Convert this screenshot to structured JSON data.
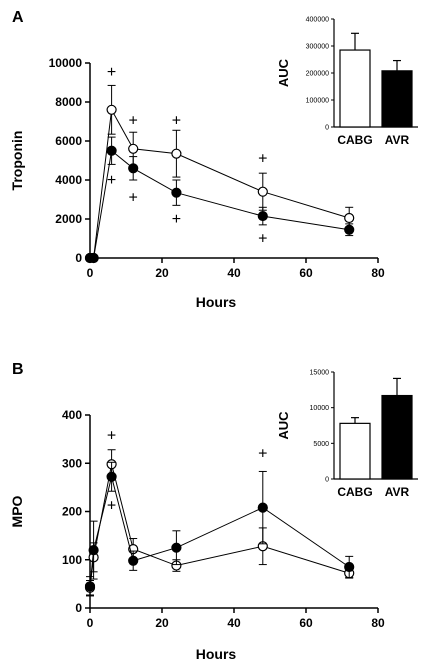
{
  "chart_data": [
    {
      "panel": "A",
      "type": "line",
      "xlabel": "Hours",
      "ylabel": "Troponin",
      "xlim": [
        0,
        80
      ],
      "ylim": [
        0,
        10000
      ],
      "xticks": [
        0,
        20,
        40,
        60,
        80
      ],
      "yticks": [
        0,
        2000,
        4000,
        6000,
        8000,
        10000
      ],
      "series": [
        {
          "marker": "open-circle",
          "x": [
            0,
            1,
            6,
            12,
            24,
            48,
            72
          ],
          "y": [
            0,
            0,
            7600,
            5600,
            5350,
            3400,
            2050
          ],
          "err": [
            0,
            0,
            1250,
            850,
            1200,
            950,
            550
          ]
        },
        {
          "marker": "filled-circle",
          "x": [
            0,
            1,
            6,
            12,
            24,
            48,
            72
          ],
          "y": [
            0,
            0,
            5500,
            4600,
            3350,
            2150,
            1450
          ],
          "err": [
            0,
            0,
            700,
            600,
            650,
            450,
            300
          ]
        }
      ],
      "significance_markers": [
        {
          "symbol": "+",
          "x": 6,
          "y": 9600
        },
        {
          "symbol": "+",
          "x": 6,
          "y": 4050
        },
        {
          "symbol": "+",
          "x": 12,
          "y": 7100
        },
        {
          "symbol": "+",
          "x": 12,
          "y": 3150
        },
        {
          "symbol": "+",
          "x": 24,
          "y": 7100
        },
        {
          "symbol": "+",
          "x": 24,
          "y": 2050
        },
        {
          "symbol": "+",
          "x": 48,
          "y": 5150
        },
        {
          "symbol": "+",
          "x": 48,
          "y": 1050
        }
      ],
      "inset": {
        "type": "bar",
        "ylabel": "AUC",
        "categories": [
          "CABG",
          "AVR"
        ],
        "values": [
          285000,
          208000
        ],
        "err": [
          62000,
          38000
        ],
        "fills": [
          "#ffffff",
          "#000000"
        ],
        "ylim": [
          0,
          400000
        ],
        "yticks": [
          0,
          100000,
          200000,
          300000,
          400000
        ]
      }
    },
    {
      "panel": "B",
      "type": "line",
      "xlabel": "Hours",
      "ylabel": "MPO",
      "xlim": [
        0,
        80
      ],
      "ylim": [
        0,
        400
      ],
      "xticks": [
        0,
        20,
        40,
        60,
        80
      ],
      "yticks": [
        0,
        100,
        200,
        300,
        400
      ],
      "series": [
        {
          "marker": "open-circle",
          "x": [
            0,
            1,
            6,
            12,
            24,
            48,
            72
          ],
          "y": [
            42,
            105,
            298,
            122,
            88,
            128,
            72
          ],
          "err": [
            15,
            30,
            30,
            22,
            12,
            38,
            10
          ]
        },
        {
          "marker": "filled-circle",
          "x": [
            0,
            1,
            6,
            12,
            24,
            48,
            72
          ],
          "y": [
            45,
            120,
            272,
            98,
            125,
            208,
            85
          ],
          "err": [
            20,
            60,
            30,
            20,
            35,
            75,
            22
          ]
        }
      ],
      "significance_markers": [
        {
          "symbol": "+",
          "x": 6,
          "y": 360
        },
        {
          "symbol": "+",
          "x": 6,
          "y": 215
        },
        {
          "symbol": "+",
          "x": 48,
          "y": 322
        }
      ],
      "inset": {
        "type": "bar",
        "ylabel": "AUC",
        "categories": [
          "CABG",
          "AVR"
        ],
        "values": [
          7800,
          11700
        ],
        "err": [
          800,
          2400
        ],
        "fills": [
          "#ffffff",
          "#000000"
        ],
        "ylim": [
          0,
          15000
        ],
        "yticks": [
          0,
          5000,
          10000,
          15000
        ]
      }
    }
  ]
}
